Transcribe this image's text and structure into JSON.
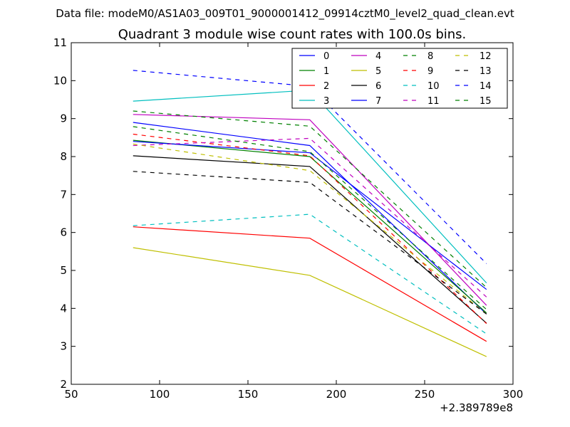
{
  "suptitle": "Data file: modeM0/AS1A03_009T01_9000001412_09914cztM0_level2_quad_clean.evt",
  "chart_data": {
    "type": "line",
    "title": "Quadrant 3 module wise count rates with 100.0s bins.",
    "xlabel": "",
    "ylabel": "",
    "x_offset_label": "+2.389789e8",
    "xlim": [
      50,
      300
    ],
    "ylim": [
      2,
      11
    ],
    "xticks": [
      50,
      100,
      150,
      200,
      250,
      300
    ],
    "yticks": [
      2,
      3,
      4,
      5,
      6,
      7,
      8,
      9,
      10,
      11
    ],
    "grid": false,
    "legend_position": "top-right",
    "legend_columns": 4,
    "x": [
      85,
      185,
      285
    ],
    "series": [
      {
        "name": "0",
        "color": "#0000ff",
        "dash": "solid",
        "values": [
          8.9,
          8.29,
          3.85
        ]
      },
      {
        "name": "1",
        "color": "#008000",
        "dash": "solid",
        "values": [
          8.43,
          8.0,
          3.88
        ]
      },
      {
        "name": "2",
        "color": "#ff0000",
        "dash": "solid",
        "values": [
          6.15,
          5.85,
          3.13
        ]
      },
      {
        "name": "3",
        "color": "#00bfbf",
        "dash": "solid",
        "values": [
          9.46,
          9.75,
          4.67
        ]
      },
      {
        "name": "4",
        "color": "#bf00bf",
        "dash": "solid",
        "values": [
          9.11,
          8.97,
          4.08
        ]
      },
      {
        "name": "5",
        "color": "#bfbf00",
        "dash": "solid",
        "values": [
          5.6,
          4.87,
          2.73
        ]
      },
      {
        "name": "6",
        "color": "#000000",
        "dash": "solid",
        "values": [
          8.02,
          7.74,
          3.61
        ]
      },
      {
        "name": "7",
        "color": "#0000ff",
        "dash": "solid",
        "values": [
          8.4,
          8.1,
          4.5
        ]
      },
      {
        "name": "8",
        "color": "#008000",
        "dash": "dashed",
        "values": [
          9.2,
          8.8,
          4.55
        ]
      },
      {
        "name": "9",
        "color": "#ff0000",
        "dash": "dashed",
        "values": [
          8.59,
          8.02,
          3.6
        ]
      },
      {
        "name": "10",
        "color": "#00bfbf",
        "dash": "dashed",
        "values": [
          6.18,
          6.48,
          3.33
        ]
      },
      {
        "name": "11",
        "color": "#bf00bf",
        "dash": "dashed",
        "values": [
          8.29,
          8.48,
          4.3
        ]
      },
      {
        "name": "12",
        "color": "#bfbf00",
        "dash": "dashed",
        "values": [
          8.33,
          7.63,
          3.85
        ]
      },
      {
        "name": "13",
        "color": "#000000",
        "dash": "dashed",
        "values": [
          7.61,
          7.32,
          3.85
        ]
      },
      {
        "name": "14",
        "color": "#0000ff",
        "dash": "dashed",
        "values": [
          10.27,
          9.85,
          5.18
        ]
      },
      {
        "name": "15",
        "color": "#008000",
        "dash": "dashed",
        "values": [
          8.79,
          8.13,
          3.97
        ]
      }
    ]
  }
}
